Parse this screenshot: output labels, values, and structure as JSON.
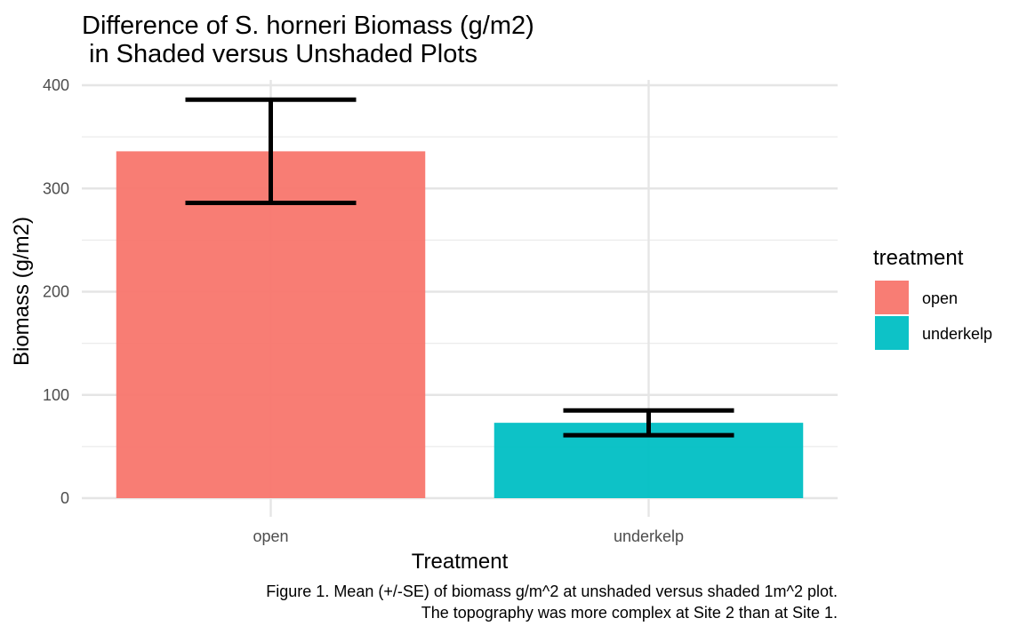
{
  "chart_data": {
    "type": "bar",
    "title_lines": [
      "Difference of S. horneri Biomass (g/m2)",
      " in Shaded versus Unshaded Plots"
    ],
    "xlabel": "Treatment",
    "ylabel": "Biomass (g/m2)",
    "categories": [
      "open",
      "underkelp"
    ],
    "values": [
      336,
      73
    ],
    "error_low": [
      286,
      61
    ],
    "error_high": [
      386,
      85
    ],
    "colors": [
      "#F8766D",
      "#00BFC4"
    ],
    "ylim": [
      0,
      400
    ],
    "yticks": [
      0,
      100,
      200,
      300,
      400
    ],
    "ytick_labels": [
      "0",
      "100",
      "200",
      "300",
      "400"
    ],
    "grid": true,
    "legend": {
      "title": "treatment",
      "position": "right",
      "entries": [
        "open",
        "underkelp"
      ]
    },
    "caption_lines": [
      "Figure 1. Mean (+/-SE) of biomass g/m^2 at unshaded versus shaded 1m^2 plot.",
      "The topography was more complex at Site 2 than at Site 1."
    ]
  }
}
